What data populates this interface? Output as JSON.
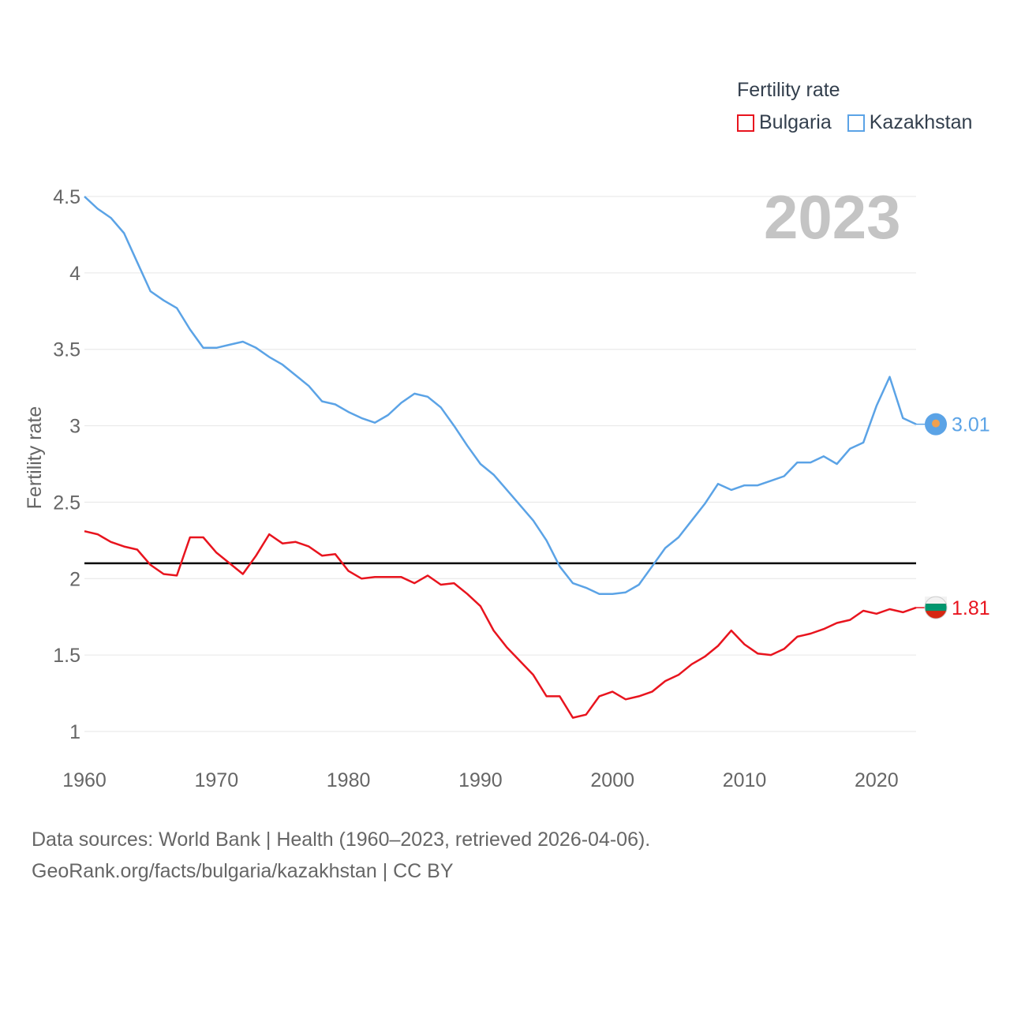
{
  "legend": {
    "title": "Fertility rate",
    "items": [
      {
        "label": "Bulgaria",
        "color": "#e8141e"
      },
      {
        "label": "Kazakhstan",
        "color": "#5ba3e6"
      }
    ]
  },
  "year_label": "2023",
  "sources": {
    "line1": "Data sources: World Bank | Health (1960–2023, retrieved 2026-04-06).",
    "line2": "GeoRank.org/facts/bulgaria/kazakhstan | CC BY"
  },
  "chart_data": {
    "type": "line",
    "ylabel": "Fertility rate",
    "xlabel": "",
    "xlim": [
      1960,
      2023
    ],
    "ylim": [
      1,
      4.5
    ],
    "x_ticks": [
      "1960",
      "1970",
      "1980",
      "1990",
      "2000",
      "2010",
      "2020"
    ],
    "y_ticks": [
      "1",
      "1.5",
      "2",
      "2.5",
      "3",
      "3.5",
      "4",
      "4.5"
    ],
    "reference_line": {
      "value": 2.1,
      "color": "#000000"
    },
    "x": [
      1960,
      1961,
      1962,
      1963,
      1964,
      1965,
      1966,
      1967,
      1968,
      1969,
      1970,
      1971,
      1972,
      1973,
      1974,
      1975,
      1976,
      1977,
      1978,
      1979,
      1980,
      1981,
      1982,
      1983,
      1984,
      1985,
      1986,
      1987,
      1988,
      1989,
      1990,
      1991,
      1992,
      1993,
      1994,
      1995,
      1996,
      1997,
      1998,
      1999,
      2000,
      2001,
      2002,
      2003,
      2004,
      2005,
      2006,
      2007,
      2008,
      2009,
      2010,
      2011,
      2012,
      2013,
      2014,
      2015,
      2016,
      2017,
      2018,
      2019,
      2020,
      2021,
      2022,
      2023
    ],
    "series": [
      {
        "name": "Bulgaria",
        "color": "#e8141e",
        "end_label": "1.81",
        "values": [
          2.31,
          2.29,
          2.24,
          2.21,
          2.19,
          2.09,
          2.03,
          2.02,
          2.27,
          2.27,
          2.17,
          2.1,
          2.03,
          2.15,
          2.29,
          2.23,
          2.24,
          2.21,
          2.15,
          2.16,
          2.05,
          2.0,
          2.01,
          2.01,
          2.01,
          1.97,
          2.02,
          1.96,
          1.97,
          1.9,
          1.82,
          1.66,
          1.55,
          1.46,
          1.37,
          1.23,
          1.23,
          1.09,
          1.11,
          1.23,
          1.26,
          1.21,
          1.23,
          1.26,
          1.33,
          1.37,
          1.44,
          1.49,
          1.56,
          1.66,
          1.57,
          1.51,
          1.5,
          1.54,
          1.62,
          1.64,
          1.67,
          1.71,
          1.73,
          1.79,
          1.77,
          1.8,
          1.78,
          1.81
        ]
      },
      {
        "name": "Kazakhstan",
        "color": "#5ba3e6",
        "end_label": "3.01",
        "values": [
          4.5,
          4.42,
          4.36,
          4.26,
          4.07,
          3.88,
          3.82,
          3.77,
          3.63,
          3.51,
          3.51,
          3.53,
          3.55,
          3.51,
          3.45,
          3.4,
          3.33,
          3.26,
          3.16,
          3.14,
          3.09,
          3.05,
          3.02,
          3.07,
          3.15,
          3.21,
          3.19,
          3.12,
          3.0,
          2.87,
          2.75,
          2.68,
          2.58,
          2.48,
          2.38,
          2.25,
          2.08,
          1.97,
          1.94,
          1.9,
          1.9,
          1.91,
          1.96,
          2.08,
          2.2,
          2.27,
          2.38,
          2.49,
          2.62,
          2.58,
          2.61,
          2.61,
          2.64,
          2.67,
          2.76,
          2.76,
          2.8,
          2.75,
          2.85,
          2.89,
          3.13,
          3.32,
          3.05,
          3.01
        ]
      }
    ]
  }
}
